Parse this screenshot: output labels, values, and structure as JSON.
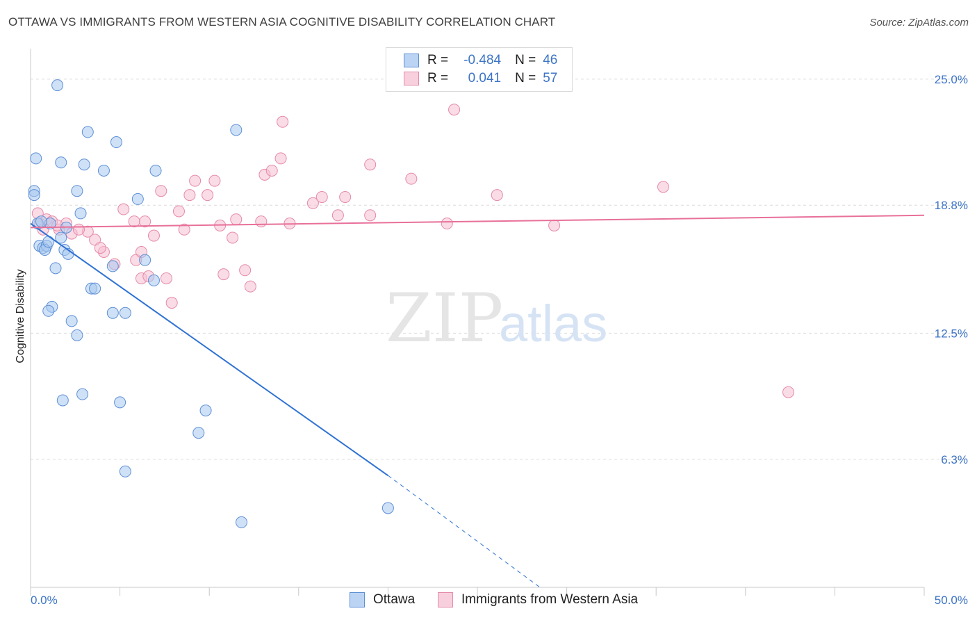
{
  "title": "OTTAWA VS IMMIGRANTS FROM WESTERN ASIA COGNITIVE DISABILITY CORRELATION CHART",
  "source": "Source: ZipAtlas.com",
  "watermark": {
    "zip": "ZIP",
    "atlas": "atlas"
  },
  "legend": {
    "rows": [
      {
        "r_label": "R =",
        "r_value": "-0.484",
        "n_label": "N =",
        "n_value": "46"
      },
      {
        "r_label": "R =",
        "r_value": "0.041",
        "n_label": "N =",
        "n_value": "57"
      }
    ]
  },
  "colors": {
    "ottawa_fill": "#a8c8ef",
    "ottawa_stroke": "#5d8fd6",
    "ottawa_line": "#2f72d4",
    "immig_fill": "#f6c0d1",
    "immig_stroke": "#e58aa8",
    "immig_line": "#e8709a",
    "axis_text": "#3d74c6",
    "grid": "#dcdcdc"
  },
  "chart_data": {
    "type": "scatter",
    "title": "OTTAWA VS IMMIGRANTS FROM WESTERN ASIA COGNITIVE DISABILITY CORRELATION CHART",
    "xlabel": "",
    "ylabel": "Cognitive Disability",
    "xlim": [
      0,
      50
    ],
    "ylim": [
      0,
      26.5
    ],
    "x_tick_labels": [
      "0.0%",
      "50.0%"
    ],
    "y_ticks": [
      6.3,
      12.5,
      18.8,
      25.0
    ],
    "y_tick_labels": [
      "6.3%",
      "12.5%",
      "18.8%",
      "25.0%"
    ],
    "grid": true,
    "legend_position": "bottom",
    "series": [
      {
        "name": "Ottawa",
        "points": [
          [
            0.2,
            19.5
          ],
          [
            0.2,
            19.3
          ],
          [
            0.3,
            21.1
          ],
          [
            1.5,
            24.7
          ],
          [
            3.2,
            22.4
          ],
          [
            4.8,
            21.9
          ],
          [
            11.5,
            22.5
          ],
          [
            1.7,
            20.9
          ],
          [
            3.0,
            20.8
          ],
          [
            4.1,
            20.5
          ],
          [
            7.0,
            20.5
          ],
          [
            2.6,
            19.5
          ],
          [
            6.0,
            19.1
          ],
          [
            0.4,
            17.9
          ],
          [
            1.1,
            17.9
          ],
          [
            2.8,
            18.4
          ],
          [
            2.0,
            17.7
          ],
          [
            1.7,
            17.2
          ],
          [
            0.5,
            16.8
          ],
          [
            0.7,
            16.7
          ],
          [
            0.9,
            16.8
          ],
          [
            0.8,
            16.6
          ],
          [
            1.9,
            16.6
          ],
          [
            2.1,
            16.4
          ],
          [
            6.4,
            16.1
          ],
          [
            1.4,
            15.7
          ],
          [
            4.6,
            15.8
          ],
          [
            6.9,
            15.1
          ],
          [
            3.4,
            14.7
          ],
          [
            3.6,
            14.7
          ],
          [
            1.2,
            13.8
          ],
          [
            1.0,
            13.6
          ],
          [
            4.6,
            13.5
          ],
          [
            5.3,
            13.5
          ],
          [
            2.3,
            13.1
          ],
          [
            2.6,
            12.4
          ],
          [
            1.8,
            9.2
          ],
          [
            2.9,
            9.5
          ],
          [
            5.0,
            9.1
          ],
          [
            9.8,
            8.7
          ],
          [
            9.4,
            7.6
          ],
          [
            5.3,
            5.7
          ],
          [
            11.8,
            3.2
          ],
          [
            20.0,
            3.9
          ],
          [
            1.0,
            17.0
          ],
          [
            0.6,
            18.0
          ]
        ]
      },
      {
        "name": "Immigrants from Western Asia",
        "points": [
          [
            0.4,
            18.4
          ],
          [
            0.5,
            17.9
          ],
          [
            0.9,
            18.1
          ],
          [
            1.2,
            18.0
          ],
          [
            1.6,
            17.6
          ],
          [
            2.0,
            17.9
          ],
          [
            2.3,
            17.4
          ],
          [
            3.2,
            17.5
          ],
          [
            3.6,
            17.1
          ],
          [
            4.1,
            16.5
          ],
          [
            5.2,
            18.6
          ],
          [
            5.8,
            18.0
          ],
          [
            5.9,
            16.1
          ],
          [
            6.2,
            16.5
          ],
          [
            6.4,
            18.0
          ],
          [
            6.9,
            17.3
          ],
          [
            7.3,
            19.5
          ],
          [
            6.2,
            15.2
          ],
          [
            6.6,
            15.3
          ],
          [
            7.6,
            15.2
          ],
          [
            7.9,
            14.0
          ],
          [
            8.3,
            18.5
          ],
          [
            8.6,
            17.6
          ],
          [
            8.9,
            19.3
          ],
          [
            9.2,
            20.0
          ],
          [
            9.9,
            19.3
          ],
          [
            10.3,
            20.0
          ],
          [
            10.6,
            17.8
          ],
          [
            10.8,
            15.4
          ],
          [
            11.3,
            17.2
          ],
          [
            11.5,
            18.1
          ],
          [
            12.0,
            15.6
          ],
          [
            12.3,
            14.8
          ],
          [
            12.9,
            18.0
          ],
          [
            13.1,
            20.3
          ],
          [
            13.5,
            20.5
          ],
          [
            14.0,
            21.1
          ],
          [
            14.1,
            22.9
          ],
          [
            14.5,
            17.9
          ],
          [
            15.8,
            18.9
          ],
          [
            16.3,
            19.2
          ],
          [
            17.2,
            18.3
          ],
          [
            17.6,
            19.2
          ],
          [
            19.0,
            18.3
          ],
          [
            19.0,
            20.8
          ],
          [
            21.3,
            20.1
          ],
          [
            23.3,
            17.9
          ],
          [
            23.7,
            23.5
          ],
          [
            26.1,
            19.3
          ],
          [
            29.3,
            17.8
          ],
          [
            35.4,
            19.7
          ],
          [
            42.4,
            9.6
          ],
          [
            3.9,
            16.7
          ],
          [
            2.7,
            17.6
          ],
          [
            0.7,
            17.6
          ],
          [
            1.5,
            17.8
          ],
          [
            4.7,
            15.9
          ]
        ]
      }
    ],
    "trend_lines": [
      {
        "series": "Ottawa",
        "r": -0.484,
        "n": 46,
        "solid_from": [
          0,
          17.9
        ],
        "solid_to": [
          20.0,
          5.5
        ],
        "dashed_to": [
          28.5,
          0.0
        ]
      },
      {
        "series": "Immigrants from Western Asia",
        "r": 0.041,
        "n": 57,
        "from": [
          0,
          17.7
        ],
        "to": [
          50,
          18.3
        ]
      }
    ],
    "legend_labels": [
      "Ottawa",
      "Immigrants from Western Asia"
    ]
  }
}
